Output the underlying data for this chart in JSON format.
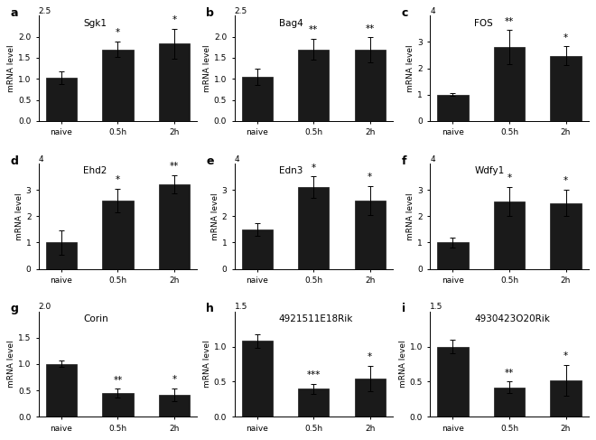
{
  "panels": [
    {
      "label": "a",
      "title": "Sgk1",
      "ylim": [
        0,
        2.5
      ],
      "yticks": [
        0.0,
        0.5,
        1.0,
        1.5,
        2.0
      ],
      "ytick_labels": [
        "0.0",
        "0.5",
        "1.0",
        "1.5",
        "2.0"
      ],
      "ymax_label": "2.5",
      "values": [
        1.02,
        1.7,
        1.83
      ],
      "errors": [
        0.15,
        0.18,
        0.35
      ],
      "sig": [
        "",
        "*",
        "*"
      ],
      "categories": [
        "naive",
        "0.5h",
        "2h"
      ]
    },
    {
      "label": "b",
      "title": "Bag4",
      "ylim": [
        0,
        2.5
      ],
      "yticks": [
        0.0,
        0.5,
        1.0,
        1.5,
        2.0
      ],
      "ytick_labels": [
        "0.0",
        "0.5",
        "1.0",
        "1.5",
        "2.0"
      ],
      "ymax_label": "2.5",
      "values": [
        1.05,
        1.7,
        1.68
      ],
      "errors": [
        0.2,
        0.25,
        0.3
      ],
      "sig": [
        "",
        "**",
        "**"
      ],
      "categories": [
        "naive",
        "0.5h",
        "2h"
      ]
    },
    {
      "label": "c",
      "title": "FOS",
      "ylim": [
        0,
        4
      ],
      "yticks": [
        0,
        1,
        2,
        3
      ],
      "ytick_labels": [
        "0",
        "1",
        "2",
        "3"
      ],
      "ymax_label": "4",
      "values": [
        1.0,
        2.8,
        2.48
      ],
      "errors": [
        0.05,
        0.65,
        0.35
      ],
      "sig": [
        "",
        "**",
        "*"
      ],
      "categories": [
        "naive",
        "0.5h",
        "2h"
      ]
    },
    {
      "label": "d",
      "title": "Ehd2",
      "ylim": [
        0,
        4
      ],
      "yticks": [
        0,
        1,
        2,
        3
      ],
      "ytick_labels": [
        "0",
        "1",
        "2",
        "3"
      ],
      "ymax_label": "4",
      "values": [
        1.0,
        2.6,
        3.2
      ],
      "errors": [
        0.45,
        0.45,
        0.35
      ],
      "sig": [
        "",
        "*",
        "**"
      ],
      "categories": [
        "naive",
        "0.5h",
        "2h"
      ]
    },
    {
      "label": "e",
      "title": "Edn3",
      "ylim": [
        0,
        4
      ],
      "yticks": [
        0,
        1,
        2,
        3
      ],
      "ytick_labels": [
        "0",
        "1",
        "2",
        "3"
      ],
      "ymax_label": "4",
      "values": [
        1.5,
        3.1,
        2.6
      ],
      "errors": [
        0.25,
        0.4,
        0.55
      ],
      "sig": [
        "",
        "*",
        "*"
      ],
      "categories": [
        "naive",
        "0.5h",
        "2h"
      ]
    },
    {
      "label": "f",
      "title": "Wdfy1",
      "ylim": [
        0,
        4
      ],
      "yticks": [
        0,
        1,
        2,
        3
      ],
      "ytick_labels": [
        "0",
        "1",
        "2",
        "3"
      ],
      "ymax_label": "4",
      "values": [
        1.0,
        2.55,
        2.5
      ],
      "errors": [
        0.18,
        0.55,
        0.5
      ],
      "sig": [
        "",
        "*",
        "*"
      ],
      "categories": [
        "naive",
        "0.5h",
        "2h"
      ]
    },
    {
      "label": "g",
      "title": "Corin",
      "ylim": [
        0,
        2.0
      ],
      "yticks": [
        0.0,
        0.5,
        1.0,
        1.5
      ],
      "ytick_labels": [
        "0.0",
        "0.5",
        "1.0",
        "1.5"
      ],
      "ymax_label": "2.0",
      "values": [
        1.0,
        0.45,
        0.42
      ],
      "errors": [
        0.06,
        0.08,
        0.12
      ],
      "sig": [
        "",
        "**",
        "*"
      ],
      "categories": [
        "naive",
        "0.5h",
        "2h"
      ]
    },
    {
      "label": "h",
      "title": "4921511E18Rik",
      "ylim": [
        0,
        1.5
      ],
      "yticks": [
        0.0,
        0.5,
        1.0
      ],
      "ytick_labels": [
        "0.0",
        "0.5",
        "1.0"
      ],
      "ymax_label": "1.5",
      "values": [
        1.08,
        0.4,
        0.55
      ],
      "errors": [
        0.1,
        0.07,
        0.18
      ],
      "sig": [
        "",
        "***",
        "*"
      ],
      "categories": [
        "naive",
        "0.5h",
        "2h"
      ]
    },
    {
      "label": "i",
      "title": "4930423O20Rik",
      "ylim": [
        0,
        1.5
      ],
      "yticks": [
        0.0,
        0.5,
        1.0
      ],
      "ytick_labels": [
        "0.0",
        "0.5",
        "1.0"
      ],
      "ymax_label": "1.5",
      "values": [
        1.0,
        0.42,
        0.52
      ],
      "errors": [
        0.1,
        0.08,
        0.22
      ],
      "sig": [
        "",
        "**",
        "*"
      ],
      "categories": [
        "naive",
        "0.5h",
        "2h"
      ]
    }
  ],
  "bar_color": "#1a1a1a",
  "bar_width": 0.55,
  "ylabel": "mRNA level",
  "title_fontsize": 7.5,
  "label_fontsize": 9,
  "tick_fontsize": 6.5,
  "sig_fontsize": 7.5,
  "ylabel_fontsize": 6.5
}
